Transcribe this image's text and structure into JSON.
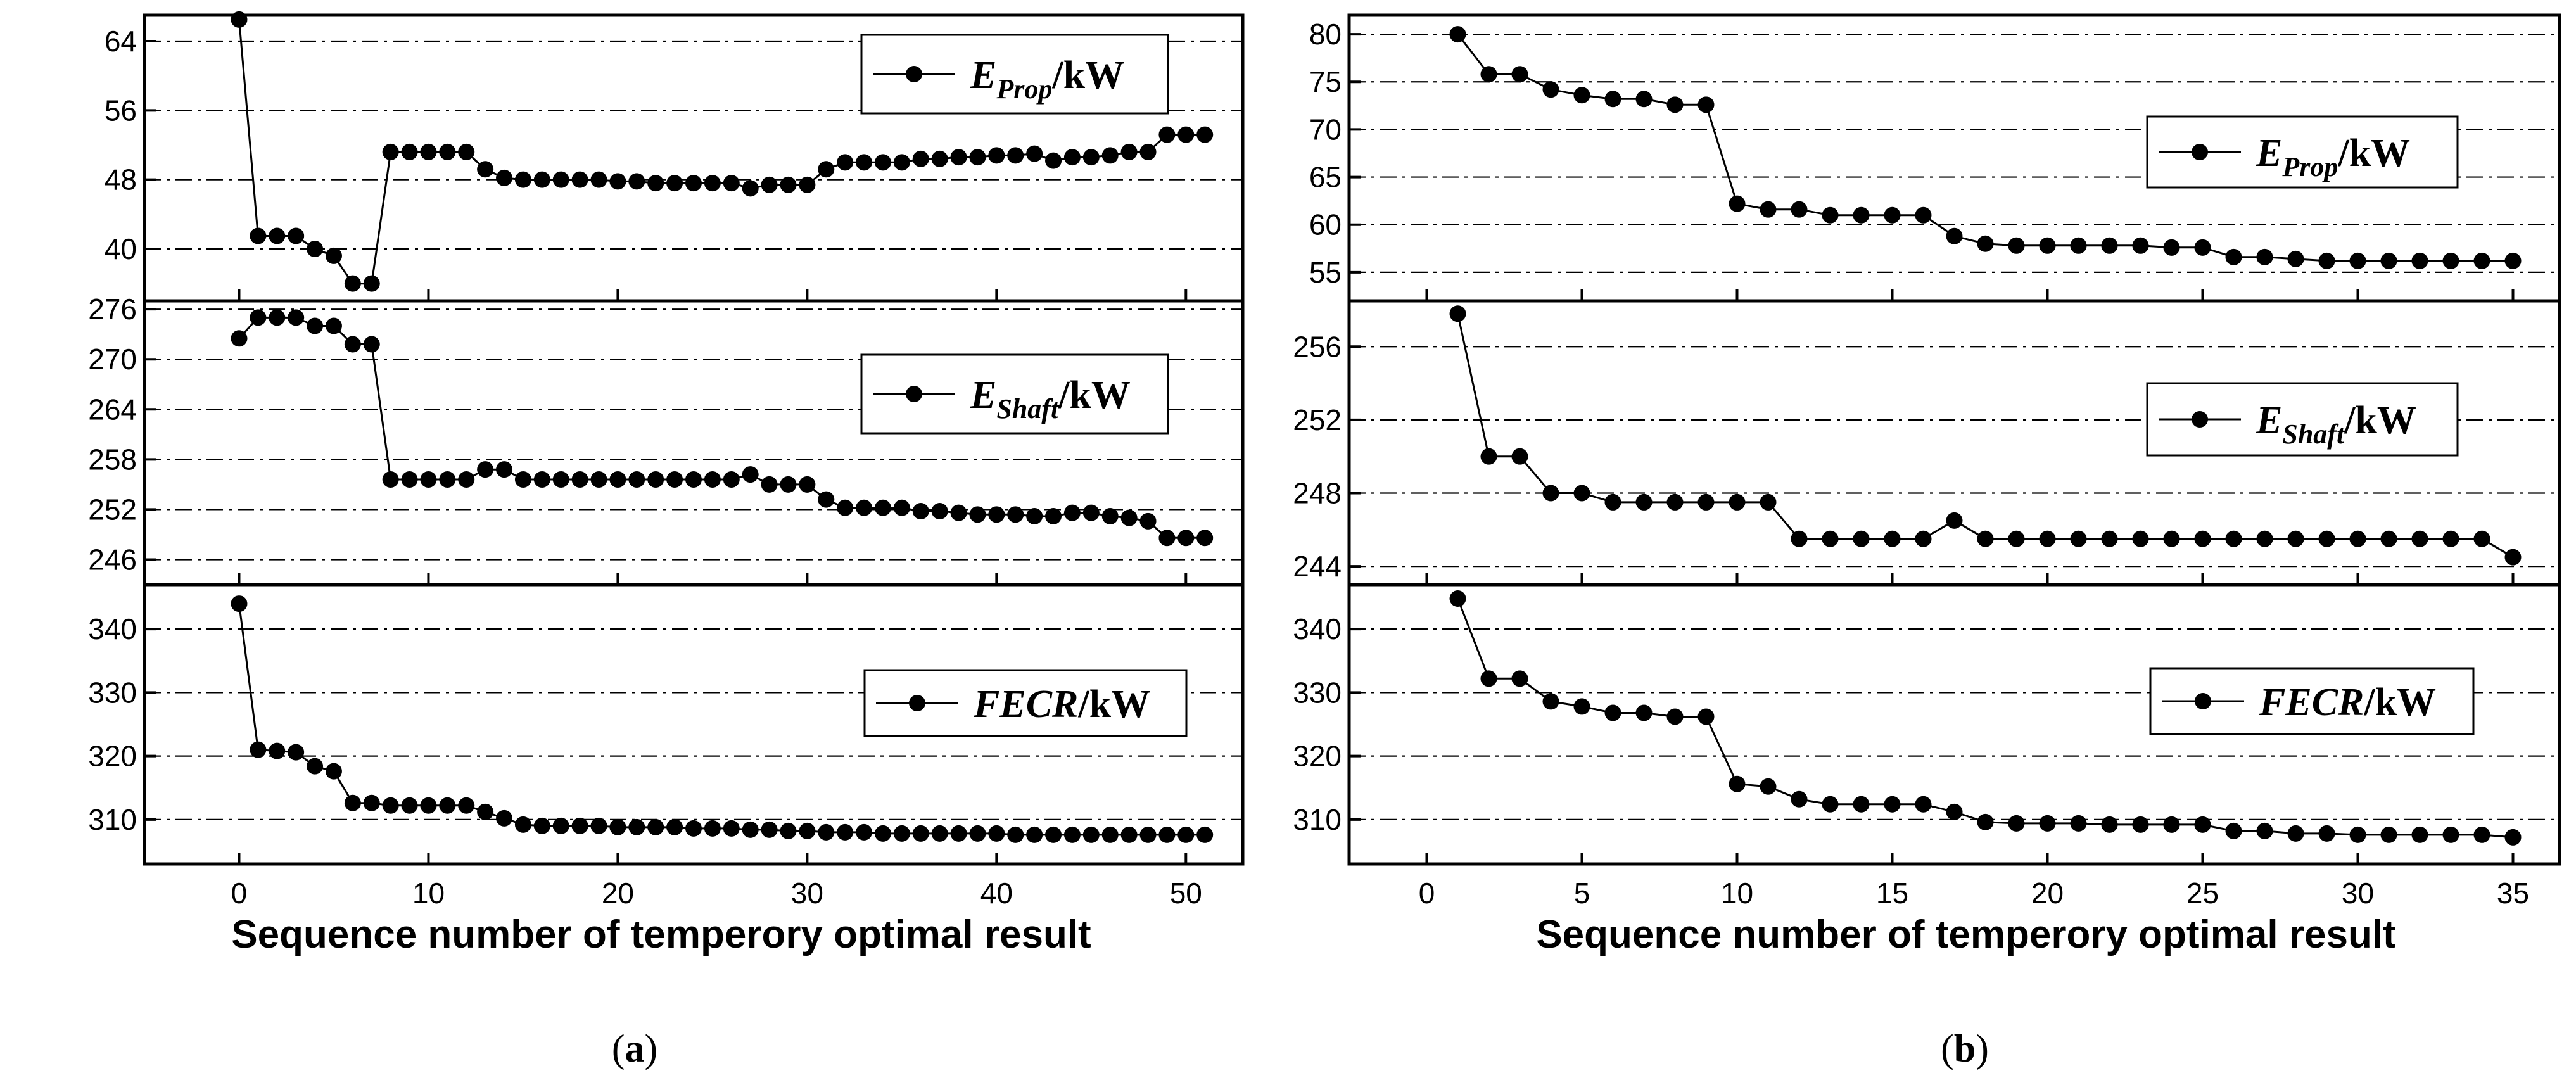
{
  "chart_data": [
    {
      "panel_label": "a",
      "type": "line",
      "xlabel": "Sequence number of temperory optimal result",
      "xlim": [
        -5,
        53
      ],
      "xticks": [
        0,
        10,
        20,
        30,
        40,
        50
      ],
      "legend_placement": "top-right",
      "subplots": [
        {
          "series": {
            "symbol": "E",
            "subscript": "Prop",
            "unit": "/kW"
          },
          "ylim": [
            34,
            67
          ],
          "yticks": [
            40,
            48,
            56,
            64
          ],
          "x": [
            0,
            1,
            2,
            3,
            4,
            5,
            6,
            7,
            8,
            9,
            10,
            11,
            12,
            13,
            14,
            15,
            16,
            17,
            18,
            19,
            20,
            21,
            22,
            23,
            24,
            25,
            26,
            27,
            28,
            29,
            30,
            31,
            32,
            33,
            34,
            35,
            36,
            37,
            38,
            39,
            40,
            41,
            42,
            43,
            44,
            45,
            46,
            47,
            48,
            49,
            50,
            51
          ],
          "y": [
            66.5,
            41.5,
            41.5,
            41.5,
            40.0,
            39.2,
            36.0,
            36.0,
            51.2,
            51.2,
            51.2,
            51.2,
            51.2,
            49.2,
            48.2,
            48.0,
            48.0,
            48.0,
            48.0,
            48.0,
            47.8,
            47.8,
            47.6,
            47.6,
            47.6,
            47.6,
            47.6,
            47.0,
            47.4,
            47.4,
            47.4,
            49.2,
            50.0,
            50.0,
            50.0,
            50.0,
            50.4,
            50.4,
            50.6,
            50.6,
            50.8,
            50.8,
            51.0,
            50.2,
            50.6,
            50.6,
            50.8,
            51.2,
            51.2,
            53.2,
            53.2,
            53.2
          ]
        },
        {
          "series": {
            "symbol": "E",
            "subscript": "Shaft",
            "unit": "/kW"
          },
          "ylim": [
            243,
            277
          ],
          "yticks": [
            246,
            252,
            258,
            264,
            270,
            276
          ],
          "x": [
            0,
            1,
            2,
            3,
            4,
            5,
            6,
            7,
            8,
            9,
            10,
            11,
            12,
            13,
            14,
            15,
            16,
            17,
            18,
            19,
            20,
            21,
            22,
            23,
            24,
            25,
            26,
            27,
            28,
            29,
            30,
            31,
            32,
            33,
            34,
            35,
            36,
            37,
            38,
            39,
            40,
            41,
            42,
            43,
            44,
            45,
            46,
            47,
            48,
            49,
            50,
            51
          ],
          "y": [
            272.5,
            275.0,
            275.0,
            275.0,
            274.0,
            274.0,
            271.8,
            271.8,
            255.6,
            255.6,
            255.6,
            255.6,
            255.6,
            256.8,
            256.8,
            255.6,
            255.6,
            255.6,
            255.6,
            255.6,
            255.6,
            255.6,
            255.6,
            255.6,
            255.6,
            255.6,
            255.6,
            256.2,
            255.0,
            255.0,
            255.0,
            253.2,
            252.2,
            252.2,
            252.2,
            252.2,
            251.8,
            251.8,
            251.6,
            251.4,
            251.4,
            251.4,
            251.2,
            251.2,
            251.6,
            251.6,
            251.2,
            251.0,
            250.6,
            248.6,
            248.6,
            248.6
          ]
        },
        {
          "series": {
            "symbol": "FECR",
            "subscript": "",
            "unit": "/kW"
          },
          "ylim": [
            303,
            347
          ],
          "yticks": [
            310,
            320,
            330,
            340
          ],
          "x": [
            0,
            1,
            2,
            3,
            4,
            5,
            6,
            7,
            8,
            9,
            10,
            11,
            12,
            13,
            14,
            15,
            16,
            17,
            18,
            19,
            20,
            21,
            22,
            23,
            24,
            25,
            26,
            27,
            28,
            29,
            30,
            31,
            32,
            33,
            34,
            35,
            36,
            37,
            38,
            39,
            40,
            41,
            42,
            43,
            44,
            45,
            46,
            47,
            48,
            49,
            50,
            51
          ],
          "y": [
            344.0,
            321.0,
            320.8,
            320.6,
            318.4,
            317.6,
            312.6,
            312.6,
            312.2,
            312.2,
            312.2,
            312.2,
            312.2,
            311.2,
            310.2,
            309.2,
            309.0,
            309.0,
            309.0,
            309.0,
            308.8,
            308.8,
            308.8,
            308.8,
            308.6,
            308.6,
            308.6,
            308.4,
            308.4,
            308.2,
            308.2,
            308.0,
            308.0,
            308.0,
            307.8,
            307.8,
            307.8,
            307.8,
            307.8,
            307.8,
            307.8,
            307.6,
            307.6,
            307.6,
            307.6,
            307.6,
            307.6,
            307.6,
            307.6,
            307.6,
            307.6,
            307.6
          ]
        }
      ]
    },
    {
      "panel_label": "b",
      "type": "line",
      "xlabel": "Sequence number of temperory optimal result",
      "xlim": [
        -2.5,
        36.5
      ],
      "xticks": [
        0,
        5,
        10,
        15,
        20,
        25,
        30,
        35
      ],
      "legend_placement": "center-right",
      "subplots": [
        {
          "series": {
            "symbol": "E",
            "subscript": "Prop",
            "unit": "/kW"
          },
          "ylim": [
            52,
            82
          ],
          "yticks": [
            55,
            60,
            65,
            70,
            75,
            80
          ],
          "x": [
            1,
            2,
            3,
            4,
            5,
            6,
            7,
            8,
            9,
            10,
            11,
            12,
            13,
            14,
            15,
            16,
            17,
            18,
            19,
            20,
            21,
            22,
            23,
            24,
            25,
            26,
            27,
            28,
            29,
            30,
            31,
            32,
            33,
            34,
            35
          ],
          "y": [
            80.0,
            75.8,
            75.8,
            74.2,
            73.6,
            73.2,
            73.2,
            72.6,
            72.6,
            62.2,
            61.6,
            61.6,
            61.0,
            61.0,
            61.0,
            61.0,
            58.8,
            58.0,
            57.8,
            57.8,
            57.8,
            57.8,
            57.8,
            57.6,
            57.6,
            56.6,
            56.6,
            56.4,
            56.2,
            56.2,
            56.2,
            56.2,
            56.2,
            56.2,
            56.2
          ]
        },
        {
          "series": {
            "symbol": "E",
            "subscript": "Shaft",
            "unit": "/kW"
          },
          "ylim": [
            243,
            258.5
          ],
          "yticks": [
            244,
            248,
            252,
            256
          ],
          "x": [
            1,
            2,
            3,
            4,
            5,
            6,
            7,
            8,
            9,
            10,
            11,
            12,
            13,
            14,
            15,
            16,
            17,
            18,
            19,
            20,
            21,
            22,
            23,
            24,
            25,
            26,
            27,
            28,
            29,
            30,
            31,
            32,
            33,
            34,
            35
          ],
          "y": [
            257.8,
            250.0,
            250.0,
            248.0,
            248.0,
            247.5,
            247.5,
            247.5,
            247.5,
            247.5,
            247.5,
            245.5,
            245.5,
            245.5,
            245.5,
            245.5,
            246.5,
            245.5,
            245.5,
            245.5,
            245.5,
            245.5,
            245.5,
            245.5,
            245.5,
            245.5,
            245.5,
            245.5,
            245.5,
            245.5,
            245.5,
            245.5,
            245.5,
            245.5,
            244.5
          ]
        },
        {
          "series": {
            "symbol": "FECR",
            "subscript": "",
            "unit": "/kW"
          },
          "ylim": [
            303,
            347
          ],
          "yticks": [
            310,
            320,
            330,
            340
          ],
          "x": [
            1,
            2,
            3,
            4,
            5,
            6,
            7,
            8,
            9,
            10,
            11,
            12,
            13,
            14,
            15,
            16,
            17,
            18,
            19,
            20,
            21,
            22,
            23,
            24,
            25,
            26,
            27,
            28,
            29,
            30,
            31,
            32,
            33,
            34,
            35
          ],
          "y": [
            344.8,
            332.2,
            332.2,
            328.6,
            327.8,
            326.8,
            326.8,
            326.2,
            326.2,
            315.6,
            315.2,
            313.2,
            312.4,
            312.4,
            312.4,
            312.4,
            311.2,
            309.6,
            309.4,
            309.4,
            309.4,
            309.2,
            309.2,
            309.2,
            309.2,
            308.2,
            308.2,
            307.8,
            307.8,
            307.6,
            307.6,
            307.6,
            307.6,
            307.6,
            307.2
          ]
        }
      ]
    }
  ]
}
